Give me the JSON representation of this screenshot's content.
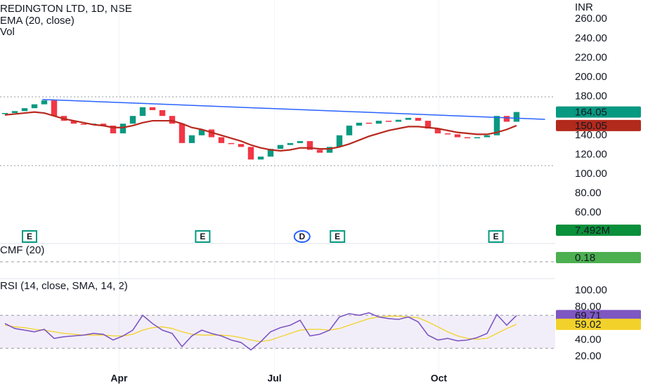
{
  "chart_data": {
    "type": "candlestick",
    "title": "REDINGTON LTD, 1D, NSE",
    "currency": "INR",
    "up_color": "#089981",
    "down_color": "#f23645",
    "xlim": [
      -0.5,
      55.93
    ],
    "xticks": [
      {
        "value": 11.6,
        "label": "Apr"
      },
      {
        "value": 27.4,
        "label": "Jul"
      },
      {
        "value": 44.1,
        "label": "Oct"
      }
    ],
    "ylim": [
      29.7,
      279.7
    ],
    "yticks": [
      {
        "value": 260,
        "label": "260.00"
      },
      {
        "value": 240,
        "label": "240.00"
      },
      {
        "value": 220,
        "label": "220.00"
      },
      {
        "value": 200,
        "label": "200.00"
      },
      {
        "value": 180,
        "label": "180.00"
      },
      {
        "value": 140,
        "label": "140.00"
      },
      {
        "value": 120,
        "label": "120.00"
      },
      {
        "value": 100,
        "label": "100.00"
      },
      {
        "value": 80,
        "label": "80.00"
      },
      {
        "value": 60,
        "label": "60.00"
      }
    ],
    "close": [
      163,
      165,
      168,
      172,
      176,
      160,
      155,
      152,
      151,
      152,
      150,
      142,
      152,
      160,
      169,
      166,
      160,
      152,
      132,
      140,
      146,
      138,
      132,
      131,
      128,
      115,
      118,
      126,
      130,
      132,
      134,
      125,
      122,
      128,
      140,
      150,
      153,
      152,
      155,
      154,
      156,
      158,
      155,
      147,
      142,
      141,
      138,
      137,
      138,
      140,
      160,
      154,
      164.05
    ],
    "ema": {
      "name": "EMA (20, close)",
      "color": "#b8291e",
      "label_color": "#b22a1c",
      "values": [
        161,
        162,
        163,
        164,
        163,
        160,
        157,
        155,
        153,
        151,
        150,
        148,
        148,
        150,
        153,
        155,
        155,
        155,
        152,
        148,
        146,
        143,
        140,
        137,
        134,
        130,
        127,
        125,
        124,
        125,
        127,
        127,
        126,
        126,
        128,
        131,
        135,
        139,
        142,
        145,
        147,
        149,
        149,
        148,
        147,
        145,
        143,
        142,
        141,
        141,
        143,
        146,
        150.05
      ]
    },
    "trendline": {
      "color": "#2962ff",
      "x": [
        3.8,
        54.9
      ],
      "values": [
        177,
        156.5
      ]
    },
    "levels": [
      179.7,
      108.7
    ],
    "volume": {
      "name": "Vol",
      "last_label": "7.492M",
      "color": "#0a8f3a"
    },
    "events": [
      {
        "label": "E",
        "x": 2.5
      },
      {
        "label": "E",
        "x": 20.1
      },
      {
        "label": "D",
        "x": 30.2
      },
      {
        "label": "E",
        "x": 33.8
      },
      {
        "label": "E",
        "x": 49.9
      }
    ],
    "cmf": {
      "title": "CMF (20)",
      "last": 0.18,
      "color": "#4caf50"
    },
    "rsi": {
      "title": "RSI (14, close, SMA, 14, 2)",
      "ylim": [
        -0.4,
        113.6
      ],
      "yticks": [
        {
          "value": 100,
          "label": "100.00"
        },
        {
          "value": 80,
          "label": "80.00"
        },
        {
          "value": 40,
          "label": "40.00"
        },
        {
          "value": 20,
          "label": "20.00"
        }
      ],
      "bands": [
        30,
        70
      ],
      "color": "#7e57c2",
      "sma_color": "#f2d22a",
      "values": [
        60,
        54,
        52,
        50,
        53,
        42,
        44,
        45,
        46,
        48,
        47,
        40,
        45,
        52,
        70,
        60,
        52,
        48,
        32,
        45,
        52,
        48,
        45,
        40,
        37,
        28,
        38,
        50,
        55,
        58,
        64,
        45,
        47,
        52,
        68,
        72,
        70,
        73,
        68,
        66,
        65,
        68,
        62,
        46,
        40,
        42,
        39,
        40,
        43,
        48,
        71,
        58,
        69.71
      ],
      "sma": [
        58,
        56,
        55,
        53,
        52,
        50,
        48,
        47,
        46,
        46,
        46,
        45,
        45,
        47,
        52,
        55,
        56,
        54,
        50,
        47,
        46,
        46,
        46,
        45,
        43,
        40,
        38,
        40,
        44,
        48,
        52,
        53,
        53,
        52,
        54,
        58,
        62,
        66,
        68,
        69,
        69,
        68,
        67,
        62,
        56,
        50,
        45,
        42,
        41,
        42,
        48,
        54,
        59.02
      ]
    }
  }
}
